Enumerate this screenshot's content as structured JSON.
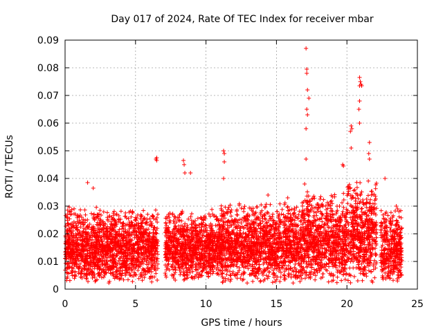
{
  "chart_data": {
    "type": "scatter",
    "title": "Day 017 of 2024, Rate Of TEC Index for receiver mbar",
    "xlabel": "GPS time / hours",
    "ylabel": "ROTI / TECUs",
    "xlim": [
      0,
      25
    ],
    "ylim": [
      0,
      0.09
    ],
    "xticks": [
      0,
      5,
      10,
      15,
      20,
      25
    ],
    "xtick_labels": [
      "0",
      "5",
      "10",
      "15",
      "20",
      "25"
    ],
    "yticks": [
      0,
      0.01,
      0.02,
      0.03,
      0.04,
      0.05,
      0.06,
      0.07,
      0.08,
      0.09
    ],
    "ytick_labels": [
      "0",
      "0.01",
      "0.02",
      "0.03",
      "0.04",
      "0.05",
      "0.06",
      "0.07",
      "0.08",
      "0.09"
    ],
    "grid": true,
    "marker": "+",
    "series": [
      {
        "name": "ROTI",
        "color": "#ff0000",
        "points": [
          [
            1.6,
            0.0385
          ],
          [
            2.0,
            0.0365
          ],
          [
            6.5,
            0.0475
          ],
          [
            6.5,
            0.0465
          ],
          [
            6.45,
            0.047
          ],
          [
            8.4,
            0.0465
          ],
          [
            8.45,
            0.045
          ],
          [
            8.5,
            0.042
          ],
          [
            8.9,
            0.042
          ],
          [
            11.25,
            0.05
          ],
          [
            11.3,
            0.049
          ],
          [
            11.3,
            0.046
          ],
          [
            11.25,
            0.04
          ],
          [
            14.4,
            0.034
          ],
          [
            15.8,
            0.033
          ],
          [
            17.1,
            0.087
          ],
          [
            17.15,
            0.0795
          ],
          [
            17.15,
            0.078
          ],
          [
            17.2,
            0.072
          ],
          [
            17.3,
            0.069
          ],
          [
            17.15,
            0.065
          ],
          [
            17.2,
            0.063
          ],
          [
            17.1,
            0.058
          ],
          [
            17.1,
            0.047
          ],
          [
            17.0,
            0.038
          ],
          [
            19.7,
            0.045
          ],
          [
            19.75,
            0.0445
          ],
          [
            20.3,
            0.059
          ],
          [
            20.35,
            0.058
          ],
          [
            20.25,
            0.057
          ],
          [
            20.3,
            0.051
          ],
          [
            20.9,
            0.0765
          ],
          [
            20.95,
            0.075
          ],
          [
            21.0,
            0.074
          ],
          [
            20.9,
            0.0735
          ],
          [
            21.05,
            0.0735
          ],
          [
            20.9,
            0.068
          ],
          [
            20.85,
            0.065
          ],
          [
            20.9,
            0.06
          ],
          [
            21.6,
            0.053
          ],
          [
            21.55,
            0.049
          ],
          [
            21.6,
            0.047
          ],
          [
            22.7,
            0.04
          ],
          [
            23.5,
            0.03
          ],
          [
            23.6,
            0.029
          ]
        ],
        "dense_bands": [
          {
            "x_start": 0.0,
            "x_end": 6.6,
            "y_low": 0.002,
            "y_high": 0.03
          },
          {
            "x_start": 7.1,
            "x_end": 11.0,
            "y_low": 0.003,
            "y_high": 0.029
          },
          {
            "x_start": 11.0,
            "x_end": 16.8,
            "y_low": 0.002,
            "y_high": 0.032
          },
          {
            "x_start": 16.8,
            "x_end": 20.0,
            "y_low": 0.002,
            "y_high": 0.036
          },
          {
            "x_start": 20.0,
            "x_end": 22.1,
            "y_low": 0.002,
            "y_high": 0.04
          },
          {
            "x_start": 22.4,
            "x_end": 23.9,
            "y_low": 0.002,
            "y_high": 0.03
          }
        ]
      }
    ]
  }
}
